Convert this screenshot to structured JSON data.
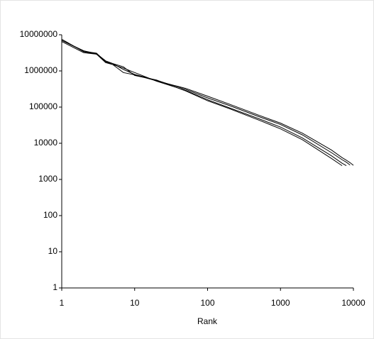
{
  "chart_data": {
    "type": "line",
    "x_label": "Rank",
    "xscale": "log",
    "yscale": "log",
    "x": [
      1,
      2,
      3,
      4,
      5,
      7,
      10,
      20,
      50,
      100,
      200,
      500,
      1000,
      2000,
      5000,
      7000,
      8000,
      9000,
      10000
    ],
    "series": [
      {
        "color": "#000000",
        "values": [
          7000000,
          3600000,
          3000000,
          1900000,
          1600000,
          1100000,
          800000,
          550000,
          310000,
          180000,
          110000,
          55000,
          33000,
          17000,
          5500,
          3500,
          3000,
          2500,
          null
        ]
      },
      {
        "color": "#000000",
        "values": [
          7500000,
          3400000,
          2900000,
          1700000,
          1500000,
          1200000,
          900000,
          520000,
          290000,
          160000,
          95000,
          48000,
          28000,
          14000,
          4500,
          2800,
          2400,
          null,
          null
        ]
      },
      {
        "color": "#000000",
        "values": [
          6500000,
          3200000,
          2900000,
          1800000,
          1600000,
          1300000,
          750000,
          560000,
          280000,
          150000,
          90000,
          44000,
          25000,
          12500,
          3800,
          2400,
          null,
          null,
          null
        ]
      },
      {
        "color": "#000000",
        "values": [
          7000000,
          3500000,
          3100000,
          1800000,
          1500000,
          900000,
          780000,
          530000,
          330000,
          200000,
          120000,
          60000,
          36000,
          19000,
          6500,
          4000,
          3400,
          2900,
          2450
        ]
      }
    ],
    "xlim": [
      1,
      10000
    ],
    "xticks": [
      1,
      10,
      100,
      1000,
      10000
    ],
    "ylim": [
      1,
      10000000
    ],
    "yticks": [
      1,
      10,
      100,
      1000,
      10000,
      100000,
      1000000,
      10000000
    ],
    "grid": false
  }
}
